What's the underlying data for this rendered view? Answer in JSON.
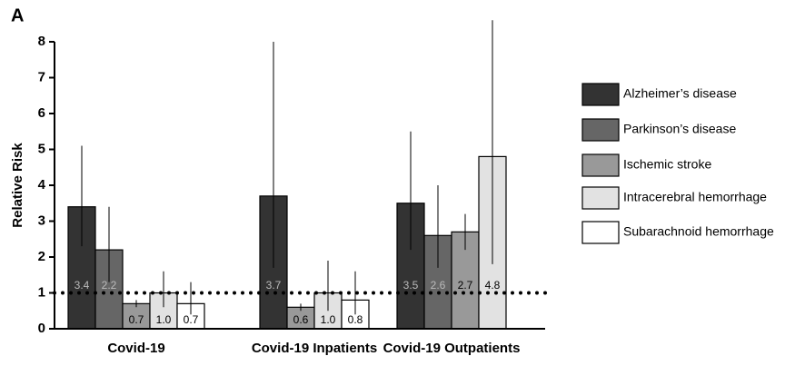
{
  "chart_data": {
    "type": "bar",
    "panel_label": "A",
    "y_label": "Relative Risk",
    "categories": [
      "Covid-19",
      "Covid-19 Inpatients",
      "Covid-19 Outpatients"
    ],
    "series": [
      {
        "name": "Alzheimer’s disease",
        "color": "#333333",
        "values": [
          3.4,
          3.7,
          3.5
        ],
        "value_labels": [
          "3.4",
          "3.7",
          "3.5"
        ],
        "error_low": [
          2.3,
          1.7,
          2.2
        ],
        "error_high": [
          5.1,
          8.0,
          5.5
        ]
      },
      {
        "name": "Parkinson’s disease",
        "color": "#666666",
        "values": [
          2.2,
          null,
          2.6
        ],
        "value_labels": [
          "2.2",
          null,
          "2.6"
        ],
        "error_low": [
          1.3,
          null,
          1.7
        ],
        "error_high": [
          3.4,
          null,
          4.0
        ]
      },
      {
        "name": "Ischemic stroke",
        "color": "#999999",
        "values": [
          0.7,
          0.6,
          2.7
        ],
        "value_labels": [
          "0.7",
          "0.6",
          "2.7"
        ],
        "error_low": [
          0.6,
          0.5,
          2.2
        ],
        "error_high": [
          0.8,
          0.7,
          3.2
        ]
      },
      {
        "name": "Intracerebral hemorrhage",
        "color": "#e2e2e2",
        "values": [
          1.0,
          1.0,
          4.8
        ],
        "value_labels": [
          "1.0",
          "1.0",
          "4.8"
        ],
        "error_low": [
          0.6,
          0.5,
          1.8
        ],
        "error_high": [
          1.6,
          1.9,
          8.6
        ]
      },
      {
        "name": "Subarachnoid hemorrhage",
        "color": "#ffffff",
        "values": [
          0.7,
          0.8,
          null
        ],
        "value_labels": [
          "0.7",
          "0.8",
          null
        ],
        "error_low": [
          0.4,
          0.4,
          null
        ],
        "error_high": [
          1.3,
          1.6,
          null
        ]
      }
    ],
    "reference_line": 1,
    "ylim": [
      0,
      8
    ],
    "yticks": [
      0,
      1,
      2,
      3,
      4,
      5,
      6,
      7,
      8
    ],
    "legend": "right"
  }
}
